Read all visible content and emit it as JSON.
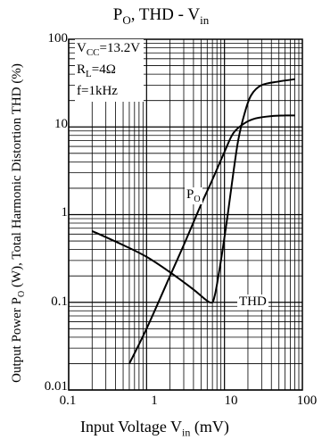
{
  "chart_data": {
    "type": "line",
    "title": {
      "main": "P",
      "sub1": "O",
      "mid": ", THD - V",
      "sub2": "in"
    },
    "xlabel": {
      "pre": "Input Voltage V",
      "sub": "in",
      "post": " (mV)"
    },
    "ylabel": {
      "pre": "Output Power P",
      "sub": "O",
      "post": " (W), Total Harmonic Distortion THD (%)"
    },
    "x_scale": "log",
    "y_scale": "log",
    "xlim": [
      0.1,
      100
    ],
    "ylim": [
      0.01,
      100
    ],
    "x_ticks": [
      "0.1",
      "1",
      "10",
      "100"
    ],
    "y_ticks": [
      "0.01",
      "0.1",
      "1",
      "10",
      "100"
    ],
    "grid": true,
    "conditions": {
      "vcc": {
        "pre": "V",
        "sub": "CC",
        "post": "=13.2V"
      },
      "rl": {
        "pre": "R",
        "sub": "L",
        "post": "=4Ω"
      },
      "f": "f=1kHz"
    },
    "series": [
      {
        "name": {
          "pre": "P",
          "sub": "O"
        },
        "x": [
          0.6,
          1.0,
          2.0,
          3.0,
          5.0,
          7.0,
          10,
          13,
          18,
          25,
          40,
          60,
          80
        ],
        "y": [
          0.02,
          0.05,
          0.2,
          0.45,
          1.3,
          2.5,
          5.2,
          8.5,
          11.0,
          12.5,
          13.3,
          13.5,
          13.5
        ]
      },
      {
        "name": "THD",
        "x": [
          0.2,
          0.5,
          1.0,
          2.0,
          4.0,
          6.5,
          7.5,
          9.0,
          11,
          13,
          15,
          18,
          22,
          30,
          50,
          80
        ],
        "y": [
          0.65,
          0.45,
          0.33,
          0.22,
          0.14,
          0.1,
          0.12,
          0.3,
          1.0,
          3.0,
          7.0,
          14.0,
          23.0,
          30.0,
          33.0,
          35.0
        ]
      }
    ]
  }
}
